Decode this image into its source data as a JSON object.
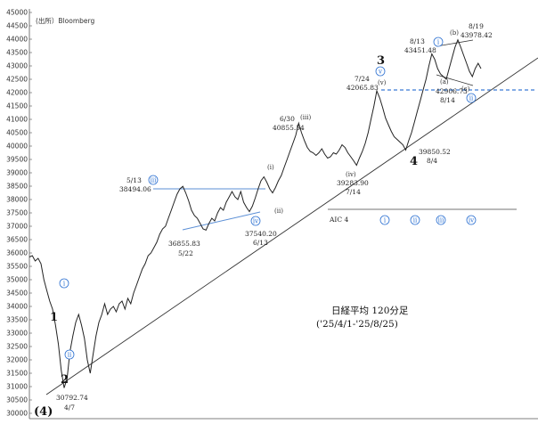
{
  "header": {
    "source": "(出所）Bloomberg"
  },
  "title": {
    "line1": "日経平均 120分足",
    "line2": "('25/4/1-'25/8/25)"
  },
  "chart_data": {
    "type": "line",
    "ylim": [
      30000,
      45000
    ],
    "yticks": [
      30000,
      30500,
      31000,
      31500,
      32000,
      32500,
      33000,
      33500,
      34000,
      34500,
      35000,
      35500,
      36000,
      36500,
      37000,
      37500,
      38000,
      38500,
      39000,
      39500,
      40000,
      40500,
      41000,
      41500,
      42000,
      42500,
      43000,
      43500,
      44000,
      44500,
      45000
    ],
    "colors": {
      "price": "#222222",
      "support": "#333333",
      "channel": "#5b8fd6",
      "dashed": "#3a7bd5",
      "circle": "#2a6fd1"
    },
    "price_path": [
      [
        0,
        35850
      ],
      [
        2,
        35900
      ],
      [
        4,
        35700
      ],
      [
        6,
        35800
      ],
      [
        8,
        35600
      ],
      [
        10,
        35000
      ],
      [
        12,
        34600
      ],
      [
        14,
        34200
      ],
      [
        16,
        33900
      ],
      [
        18,
        33300
      ],
      [
        20,
        32600
      ],
      [
        22,
        31600
      ],
      [
        24,
        30950
      ],
      [
        26,
        31300
      ],
      [
        28,
        32300
      ],
      [
        30,
        32900
      ],
      [
        32,
        33400
      ],
      [
        34,
        33700
      ],
      [
        36,
        33300
      ],
      [
        38,
        32800
      ],
      [
        40,
        32000
      ],
      [
        42,
        31500
      ],
      [
        44,
        32200
      ],
      [
        46,
        32900
      ],
      [
        48,
        33400
      ],
      [
        50,
        33700
      ],
      [
        52,
        34100
      ],
      [
        54,
        33700
      ],
      [
        56,
        33900
      ],
      [
        58,
        34000
      ],
      [
        60,
        33800
      ],
      [
        62,
        34100
      ],
      [
        64,
        34200
      ],
      [
        66,
        33900
      ],
      [
        68,
        34300
      ],
      [
        70,
        34100
      ],
      [
        72,
        34500
      ],
      [
        74,
        34800
      ],
      [
        76,
        35100
      ],
      [
        78,
        35400
      ],
      [
        80,
        35600
      ],
      [
        82,
        35900
      ],
      [
        84,
        36000
      ],
      [
        86,
        36200
      ],
      [
        88,
        36400
      ],
      [
        90,
        36700
      ],
      [
        92,
        36900
      ],
      [
        94,
        37000
      ],
      [
        96,
        37300
      ],
      [
        98,
        37600
      ],
      [
        100,
        37900
      ],
      [
        102,
        38200
      ],
      [
        104,
        38400
      ],
      [
        106,
        38494
      ],
      [
        108,
        38250
      ],
      [
        110,
        37950
      ],
      [
        112,
        37600
      ],
      [
        114,
        37400
      ],
      [
        116,
        37300
      ],
      [
        118,
        37100
      ],
      [
        120,
        36900
      ],
      [
        122,
        36856
      ],
      [
        124,
        37100
      ],
      [
        126,
        37300
      ],
      [
        128,
        37200
      ],
      [
        130,
        37500
      ],
      [
        132,
        37700
      ],
      [
        134,
        37600
      ],
      [
        136,
        37900
      ],
      [
        138,
        38100
      ],
      [
        140,
        38300
      ],
      [
        142,
        38100
      ],
      [
        144,
        38000
      ],
      [
        146,
        38300
      ],
      [
        148,
        37900
      ],
      [
        150,
        37700
      ],
      [
        152,
        37550
      ],
      [
        154,
        37750
      ],
      [
        156,
        38050
      ],
      [
        158,
        38400
      ],
      [
        160,
        38700
      ],
      [
        162,
        38850
      ],
      [
        164,
        38650
      ],
      [
        166,
        38400
      ],
      [
        168,
        38250
      ],
      [
        170,
        38450
      ],
      [
        172,
        38700
      ],
      [
        174,
        38900
      ],
      [
        176,
        39200
      ],
      [
        178,
        39500
      ],
      [
        180,
        39800
      ],
      [
        182,
        40100
      ],
      [
        184,
        40400
      ],
      [
        186,
        40855
      ],
      [
        188,
        40500
      ],
      [
        190,
        40200
      ],
      [
        192,
        39950
      ],
      [
        194,
        39800
      ],
      [
        196,
        39750
      ],
      [
        198,
        39650
      ],
      [
        200,
        39750
      ],
      [
        202,
        39900
      ],
      [
        204,
        39700
      ],
      [
        206,
        39550
      ],
      [
        208,
        39600
      ],
      [
        210,
        39750
      ],
      [
        212,
        39700
      ],
      [
        214,
        39850
      ],
      [
        216,
        40050
      ],
      [
        218,
        39950
      ],
      [
        220,
        39750
      ],
      [
        222,
        39600
      ],
      [
        224,
        39450
      ],
      [
        226,
        39284
      ],
      [
        228,
        39550
      ],
      [
        230,
        39800
      ],
      [
        232,
        40100
      ],
      [
        234,
        40500
      ],
      [
        236,
        41000
      ],
      [
        238,
        41500
      ],
      [
        240,
        42066
      ],
      [
        242,
        41800
      ],
      [
        244,
        41450
      ],
      [
        246,
        41050
      ],
      [
        248,
        40800
      ],
      [
        250,
        40550
      ],
      [
        252,
        40350
      ],
      [
        254,
        40250
      ],
      [
        256,
        40150
      ],
      [
        258,
        40050
      ],
      [
        260,
        39851
      ],
      [
        262,
        40200
      ],
      [
        264,
        40500
      ],
      [
        266,
        40900
      ],
      [
        268,
        41300
      ],
      [
        270,
        41700
      ],
      [
        272,
        42100
      ],
      [
        274,
        42500
      ],
      [
        276,
        43000
      ],
      [
        278,
        43451
      ],
      [
        280,
        43250
      ],
      [
        282,
        42900
      ],
      [
        284,
        42700
      ],
      [
        286,
        42600
      ],
      [
        288,
        42500
      ],
      [
        290,
        42907
      ],
      [
        292,
        43300
      ],
      [
        294,
        43700
      ],
      [
        296,
        43978
      ],
      [
        298,
        43700
      ],
      [
        300,
        43400
      ],
      [
        302,
        43100
      ],
      [
        304,
        42800
      ],
      [
        306,
        42600
      ],
      [
        308,
        42900
      ],
      [
        310,
        43100
      ],
      [
        312,
        42900
      ]
    ],
    "labels": {
      "p0": {
        "value": "30792.74",
        "date": "4/7"
      },
      "p1": {
        "value": "38494.06",
        "date": "5/13"
      },
      "p2": {
        "value": "36855.83",
        "date": "5/22"
      },
      "p3": {
        "value": "37540.20",
        "date": "6/13"
      },
      "p4": {
        "value": "40855.54",
        "date": "6/30"
      },
      "p5": {
        "value": "39283.90",
        "date": "7/14"
      },
      "p6": {
        "value": "42065.83",
        "date": "7/24"
      },
      "p7": {
        "value": "39850.52",
        "date": "8/4"
      },
      "p8": {
        "value": "43451.48",
        "date": "8/13"
      },
      "p9": {
        "value": "42906.73",
        "date": "8/14"
      },
      "p10": {
        "value": "43978.42",
        "date": "8/19"
      }
    },
    "waves": {
      "w4b": "(4)",
      "w1": "1",
      "w2": "2",
      "w3": "3",
      "w4": "4",
      "rn_iii": "(iii)",
      "rn_ii": "(ii)",
      "rn_iv": "(iv)",
      "rn_v": "(v)",
      "rn_a": "(a)",
      "rn_c": "(c)",
      "rn_b": "(b)",
      "rn_i": "(i)"
    },
    "circles": {
      "c_i1": "i",
      "c_ii1": "ii",
      "c_iii1": "iii",
      "c_iv1": "iv",
      "c_v1": "v",
      "c_i2": "i",
      "c_ii2": "ii",
      "legend_i": "i",
      "legend_ii": "ii",
      "legend_iii": "iii",
      "legend_iv": "iv"
    },
    "aic_label": "AIC 4"
  }
}
